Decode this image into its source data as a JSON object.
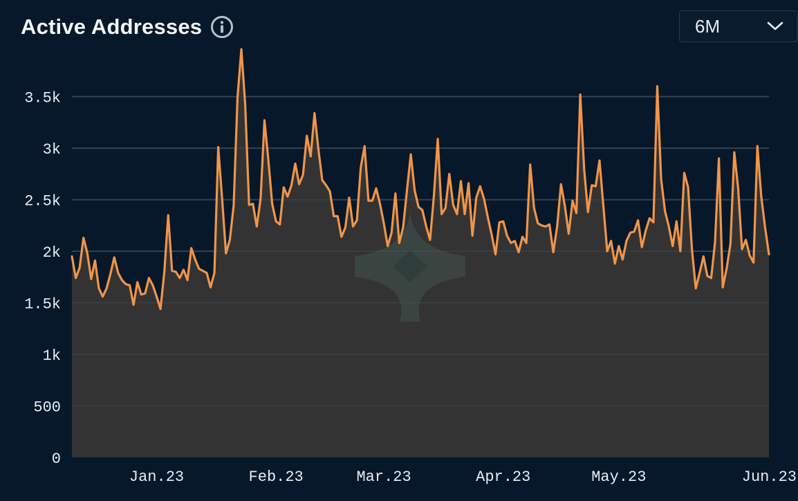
{
  "header": {
    "title": "Active Addresses",
    "info_icon": "info-circle-icon"
  },
  "range_selector": {
    "value": "6M",
    "icon": "chevron-down-icon"
  },
  "colors": {
    "background": "#07182a",
    "line": "#f0954a",
    "area": "#333333",
    "grid": "#2b3a4e"
  },
  "chart_data": {
    "type": "area",
    "title": "Active Addresses",
    "xlabel": "",
    "ylabel": "",
    "ylim": [
      0,
      3900
    ],
    "grid": true,
    "yticks": [
      {
        "value": 0,
        "label": "0"
      },
      {
        "value": 500,
        "label": "500"
      },
      {
        "value": 1000,
        "label": "1k"
      },
      {
        "value": 1500,
        "label": "1.5k"
      },
      {
        "value": 2000,
        "label": "2k"
      },
      {
        "value": 2500,
        "label": "2.5k"
      },
      {
        "value": 3000,
        "label": "3k"
      },
      {
        "value": 3500,
        "label": "3.5k"
      }
    ],
    "x_start": "2022-12-10",
    "xticks": [
      {
        "date": "2023-01-01",
        "label": "Jan.23"
      },
      {
        "date": "2023-02-01",
        "label": "Feb.23"
      },
      {
        "date": "2023-03-01",
        "label": "Mar.23"
      },
      {
        "date": "2023-04-01",
        "label": "Apr.23"
      },
      {
        "date": "2023-05-01",
        "label": "May.23"
      },
      {
        "date": "2023-06-01",
        "label": "Jun.23"
      }
    ],
    "series": [
      {
        "values": [
          1950,
          1740,
          1840,
          2130,
          1980,
          1730,
          1910,
          1640,
          1560,
          1640,
          1780,
          1940,
          1790,
          1720,
          1680,
          1670,
          1480,
          1700,
          1580,
          1590,
          1740,
          1670,
          1560,
          1440,
          1800,
          2350,
          1810,
          1800,
          1740,
          1820,
          1720,
          2030,
          1920,
          1830,
          1810,
          1790,
          1650,
          1790,
          3010,
          2510,
          1980,
          2110,
          2440,
          3490,
          3960,
          3420,
          2450,
          2460,
          2240,
          2510,
          3270,
          2890,
          2460,
          2290,
          2260,
          2620,
          2530,
          2640,
          2850,
          2650,
          2740,
          3120,
          2920,
          3340,
          2990,
          2690,
          2640,
          2580,
          2340,
          2340,
          2140,
          2230,
          2520,
          2240,
          2300,
          2810,
          3020,
          2490,
          2490,
          2610,
          2460,
          2270,
          2050,
          2180,
          2560,
          2080,
          2230,
          2590,
          2940,
          2590,
          2430,
          2400,
          2240,
          2110,
          2540,
          3090,
          2360,
          2420,
          2750,
          2450,
          2360,
          2680,
          2360,
          2660,
          2150,
          2520,
          2630,
          2510,
          2330,
          2160,
          1970,
          2280,
          2290,
          2150,
          2080,
          2100,
          1990,
          2140,
          2080,
          2840,
          2420,
          2270,
          2250,
          2240,
          2260,
          1990,
          2240,
          2650,
          2440,
          2170,
          2490,
          2370,
          3520,
          2800,
          2380,
          2640,
          2630,
          2880,
          2440,
          2000,
          2100,
          1880,
          2050,
          1920,
          2100,
          2180,
          2190,
          2300,
          2040,
          2200,
          2320,
          2280,
          3600,
          2700,
          2390,
          2240,
          2050,
          2290,
          2000,
          2760,
          2620,
          2020,
          1640,
          1790,
          1950,
          1760,
          1740,
          2090,
          2900,
          1650,
          1830,
          2070,
          2960,
          2610,
          2020,
          2110,
          1960,
          1890,
          3020,
          2530,
          2230,
          1970
        ]
      }
    ]
  }
}
